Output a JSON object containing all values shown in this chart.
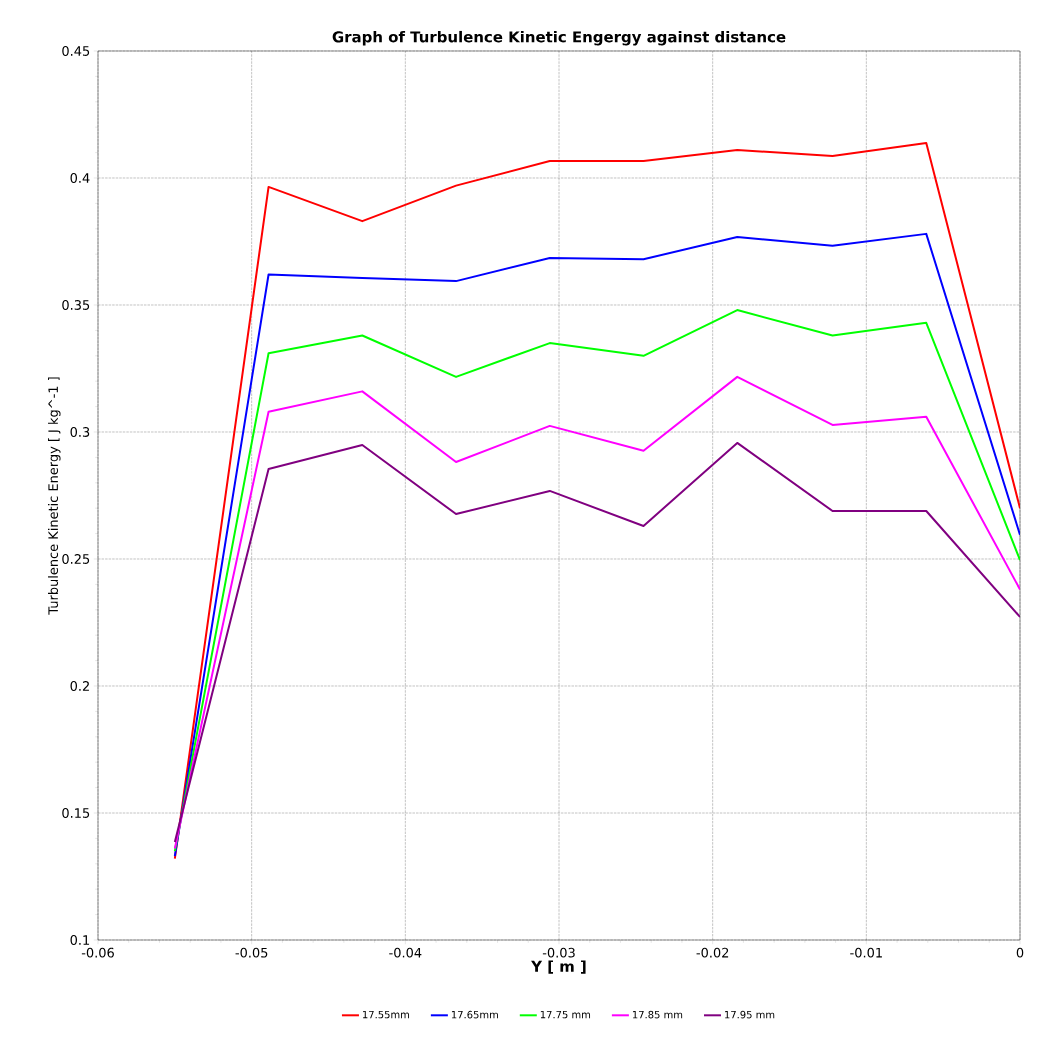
{
  "chart_data": {
    "type": "line",
    "title": "Graph of Turbulence Kinetic Engergy against distance",
    "xlabel": "Y [ m ]",
    "ylabel": "Turbulence Kinetic Energy [ J kg^-1 ]",
    "x": [
      -0.055,
      -0.0489,
      -0.0428,
      -0.0367,
      -0.0306,
      -0.0245,
      -0.0184,
      -0.0122,
      -0.0061,
      0
    ],
    "series": [
      {
        "name": "17.55mm",
        "color": "#ff0000",
        "values": [
          0.132,
          0.3965,
          0.383,
          0.397,
          0.4067,
          0.4067,
          0.411,
          0.4087,
          0.4138,
          0.27
        ]
      },
      {
        "name": "17.65mm",
        "color": "#0000ff",
        "values": [
          0.133,
          0.362,
          0.3606,
          0.3594,
          0.3685,
          0.368,
          0.3768,
          0.3733,
          0.378,
          0.2595
        ]
      },
      {
        "name": "17.75 mm",
        "color": "#00ff00",
        "values": [
          0.135,
          0.331,
          0.338,
          0.3217,
          0.335,
          0.33,
          0.348,
          0.338,
          0.343,
          0.2496
        ]
      },
      {
        "name": "17.85 mm",
        "color": "#ff00ff",
        "values": [
          0.136,
          0.308,
          0.316,
          0.2882,
          0.3024,
          0.2926,
          0.3217,
          0.3028,
          0.306,
          0.238
        ]
      },
      {
        "name": "17.95 mm",
        "color": "#800080",
        "values": [
          0.1386,
          0.2854,
          0.2949,
          0.2677,
          0.2768,
          0.263,
          0.2957,
          0.2689,
          0.2689,
          0.2272
        ]
      }
    ],
    "xlim": [
      -0.06,
      0
    ],
    "xticks": [
      -0.06,
      -0.05,
      -0.04,
      -0.03,
      -0.02,
      -0.01,
      0
    ],
    "ylim": [
      0.1,
      0.45
    ],
    "yticks": [
      0.1,
      0.15,
      0.2,
      0.25,
      0.3,
      0.35,
      0.4,
      0.45
    ],
    "grid": true,
    "legend": "bottom",
    "marker": "none",
    "line_style": "solid"
  }
}
